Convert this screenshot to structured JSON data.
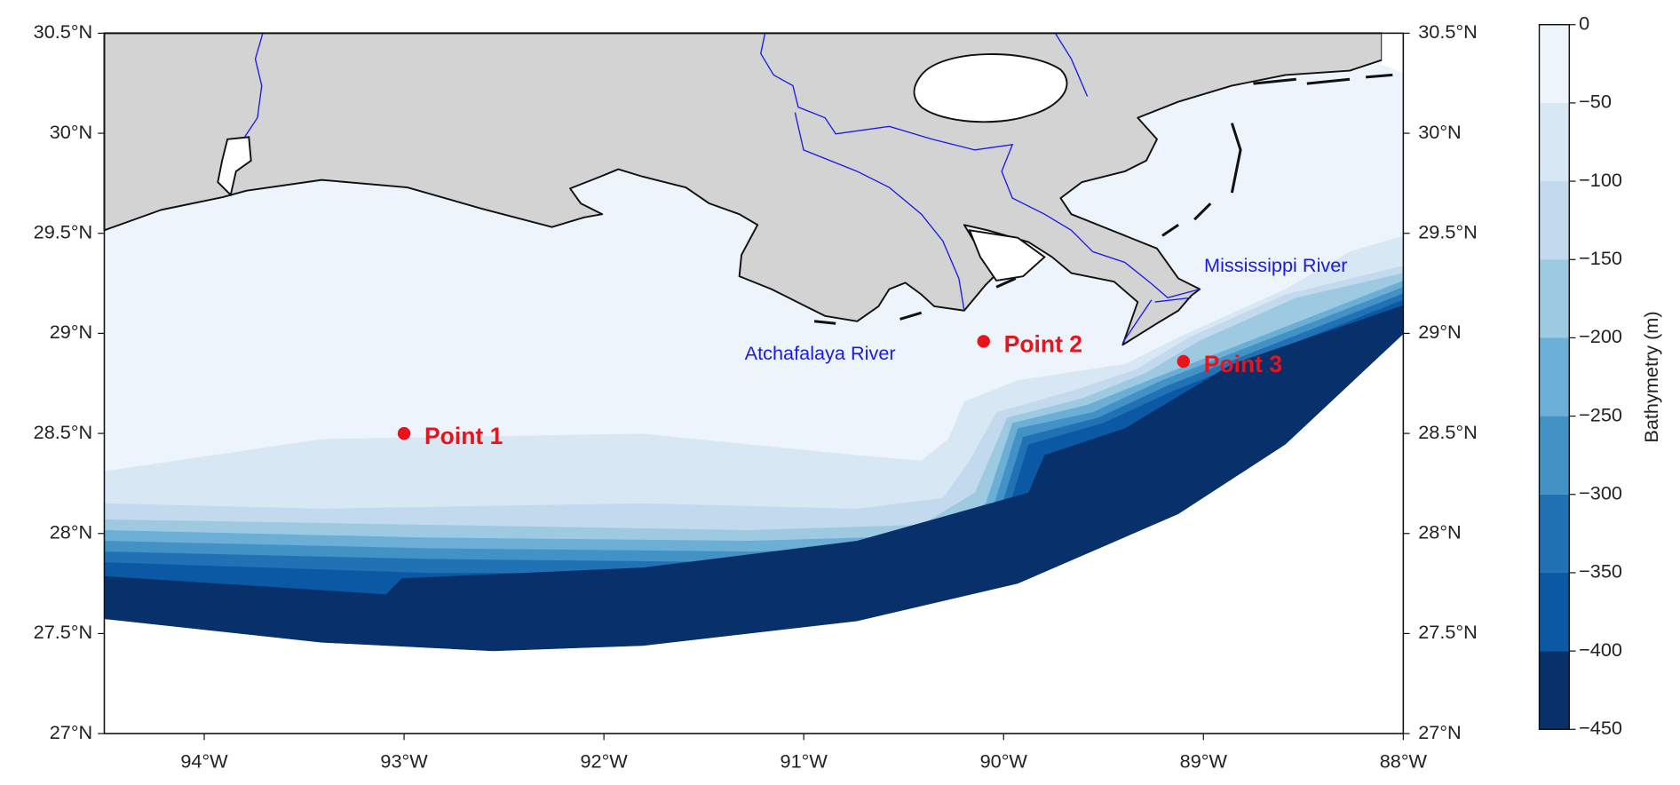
{
  "map": {
    "xlim": [
      -94.5,
      -88
    ],
    "ylim": [
      27,
      30.5
    ],
    "xticks": [
      {
        "value": -94,
        "label": "94°W"
      },
      {
        "value": -93,
        "label": "93°W"
      },
      {
        "value": -92,
        "label": "92°W"
      },
      {
        "value": -91,
        "label": "91°W"
      },
      {
        "value": -90,
        "label": "90°W"
      },
      {
        "value": -89,
        "label": "89°W"
      },
      {
        "value": -88,
        "label": "88°W"
      }
    ],
    "yticks": [
      {
        "value": 27,
        "label": "27°N"
      },
      {
        "value": 27.5,
        "label": "27.5°N"
      },
      {
        "value": 28,
        "label": "28°N"
      },
      {
        "value": 28.5,
        "label": "28.5°N"
      },
      {
        "value": 29,
        "label": "29°N"
      },
      {
        "value": 29.5,
        "label": "29.5°N"
      },
      {
        "value": 30,
        "label": "30°N"
      },
      {
        "value": 30.5,
        "label": "30.5°N"
      }
    ],
    "points": [
      {
        "label": "Point 1",
        "lon": -93.0,
        "lat": 28.5
      },
      {
        "label": "Point 2",
        "lon": -90.1,
        "lat": 28.96
      },
      {
        "label": "Point 3",
        "lon": -89.1,
        "lat": 28.86
      }
    ],
    "point_color": "#e8141b",
    "rivers": [
      {
        "label": "Atchafalaya River"
      },
      {
        "label": "Mississippi River"
      }
    ],
    "river_color": "#1a1ae6",
    "colorbar": {
      "label": "Bathymetry (m)",
      "lim": [
        -450,
        0
      ],
      "ticks": [
        0,
        {
          "value": -50,
          "label": "−50"
        },
        {
          "value": -100,
          "label": "−100"
        },
        {
          "value": -150,
          "label": "−150"
        },
        {
          "value": -200,
          "label": "−200"
        },
        {
          "value": -250,
          "label": "−250"
        },
        {
          "value": -300,
          "label": "−300"
        },
        {
          "value": -350,
          "label": "−350"
        },
        {
          "value": -400,
          "label": "−400"
        },
        {
          "value": -450,
          "label": "−450"
        }
      ],
      "colors": [
        "#eef4fb",
        "#d8e7f4",
        "#c3daee",
        "#9ecae1",
        "#6baed6",
        "#4292c6",
        "#2171b5",
        "#0b58a4",
        "#08306b"
      ]
    }
  }
}
